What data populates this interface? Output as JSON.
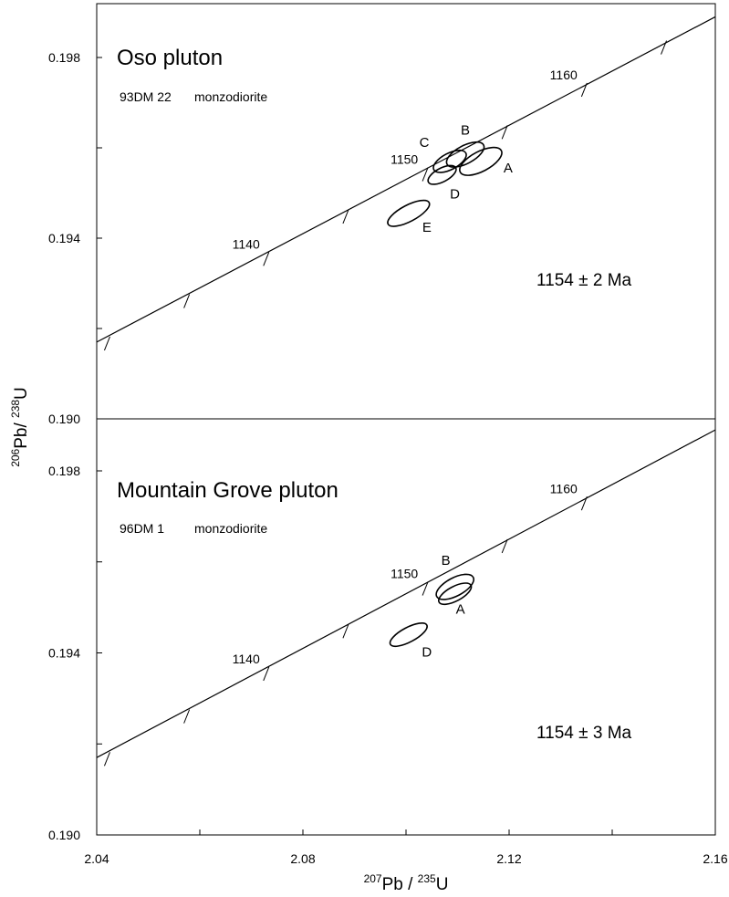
{
  "chart_data": [
    {
      "type": "scatter",
      "title": "Oso pluton",
      "sample_id": "93DM 22",
      "rock_type": "monzodiorite",
      "age_label": "1154 ± 2 Ma",
      "xlim": [
        2.04,
        2.16
      ],
      "ylim": [
        0.19,
        0.199
      ],
      "y_ticks": [
        "0.190",
        "0.194",
        "0.198"
      ],
      "concordia_labels": [
        {
          "age": "1140",
          "x": 2.0727,
          "y": 0.19353
        },
        {
          "age": "1150",
          "x": 2.1034,
          "y": 0.1954
        },
        {
          "age": "1160",
          "x": 2.1343,
          "y": 0.19727
        }
      ],
      "fractions": [
        {
          "label": "A",
          "x": 2.1145,
          "y": 0.1957,
          "rx": 0.0045,
          "ry": 0.00022
        },
        {
          "label": "B",
          "x": 2.1115,
          "y": 0.19585,
          "rx": 0.004,
          "ry": 0.0002
        },
        {
          "label": "C",
          "x": 2.1085,
          "y": 0.1957,
          "rx": 0.0035,
          "ry": 0.00018
        },
        {
          "label": "D",
          "x": 2.107,
          "y": 0.1954,
          "rx": 0.003,
          "ry": 0.00015
        },
        {
          "label": "E",
          "x": 2.1005,
          "y": 0.19455,
          "rx": 0.0045,
          "ry": 0.00018
        }
      ]
    },
    {
      "type": "scatter",
      "title": "Mountain Grove pluton",
      "sample_id": "96DM 1",
      "rock_type": "monzodiorite",
      "age_label": "1154 ± 3 Ma",
      "xlim": [
        2.04,
        2.16
      ],
      "ylim": [
        0.19,
        0.198
      ],
      "y_ticks": [
        "0.190",
        "0.194",
        "0.198"
      ],
      "concordia_labels": [
        {
          "age": "1140",
          "x": 2.0727,
          "y": 0.19353
        },
        {
          "age": "1150",
          "x": 2.1034,
          "y": 0.1954
        },
        {
          "age": "1160",
          "x": 2.1343,
          "y": 0.19727
        }
      ],
      "fractions": [
        {
          "label": "B",
          "x": 2.1095,
          "y": 0.19545,
          "rx": 0.004,
          "ry": 0.0002
        },
        {
          "label": "A",
          "x": 2.1095,
          "y": 0.1953,
          "rx": 0.0035,
          "ry": 0.00016
        },
        {
          "label": "D",
          "x": 2.1005,
          "y": 0.1944,
          "rx": 0.004,
          "ry": 0.00016
        }
      ]
    }
  ],
  "x_axis": {
    "ticks": [
      "2.04",
      "2.08",
      "2.12",
      "2.16"
    ],
    "label_parts": [
      "207",
      "Pb / ",
      "235",
      "U"
    ]
  },
  "y_axis": {
    "label_parts": [
      "206",
      "Pb/ ",
      "238",
      "U"
    ]
  }
}
